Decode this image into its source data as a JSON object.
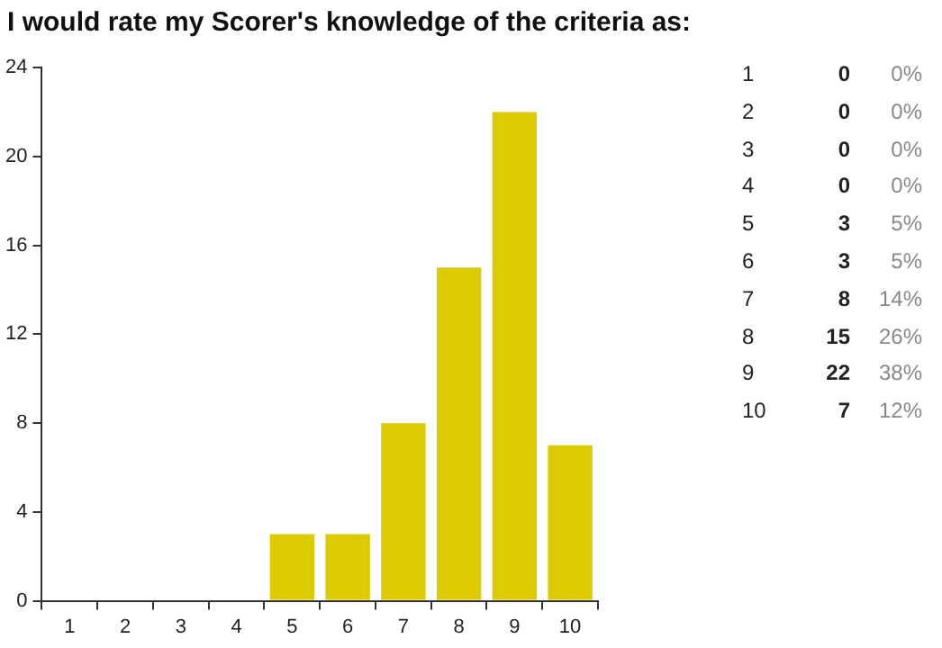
{
  "chart_data": {
    "type": "bar",
    "title": "I would rate my Scorer's knowledge of the criteria as:",
    "categories": [
      "1",
      "2",
      "3",
      "4",
      "5",
      "6",
      "7",
      "8",
      "9",
      "10"
    ],
    "values": [
      0,
      0,
      0,
      0,
      3,
      3,
      8,
      15,
      22,
      7
    ],
    "color": "#dccb00",
    "ylim": [
      0,
      24
    ],
    "yticks": [
      0,
      4,
      8,
      12,
      16,
      20,
      24
    ],
    "grid": false,
    "legend": false,
    "annotations": [
      "1",
      "0",
      "0%",
      "2",
      "0",
      "0%",
      "3",
      "0",
      "0%",
      "4",
      "0",
      "0%",
      "5",
      "3",
      "5%",
      "6",
      "3",
      "5%",
      "7",
      "8",
      "14%",
      "8",
      "15",
      "26%",
      "9",
      "22",
      "38%",
      "10",
      "7",
      "12%"
    ]
  }
}
